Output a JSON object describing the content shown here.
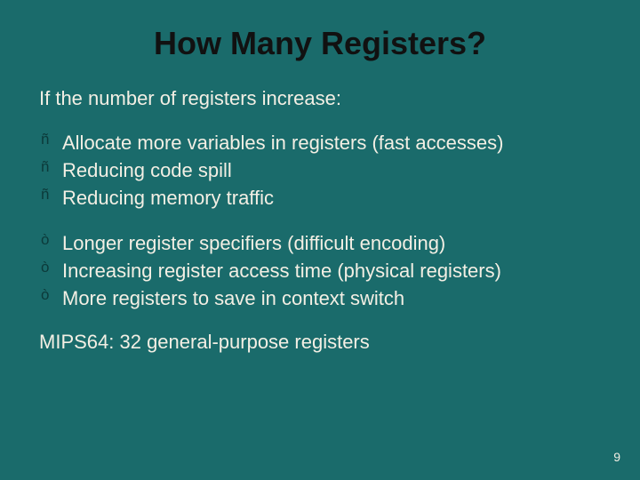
{
  "colors": {
    "background": "#1a6b6b",
    "title": "#111111",
    "bullet": "#0c3a3a",
    "body": "#f3efe4",
    "page_number": "#f3efe4"
  },
  "fontsizes": {
    "title_pt": 36,
    "body_pt": 22,
    "bullet_pt": 17,
    "page_pt": 14
  },
  "title": "How Many Registers?",
  "intro": "If the number of registers increase:",
  "group_up": [
    "Allocate more variables in registers (fast accesses)",
    "Reducing code spill",
    "Reducing memory traffic"
  ],
  "group_down": [
    "Longer register specifiers (difficult encoding)",
    "Increasing register access time (physical registers)",
    "More registers to save in context switch"
  ],
  "footer": "MIPS64: 32 general-purpose registers",
  "page_number": "9",
  "bullets": {
    "up_glyph": "ñ",
    "down_glyph": "ò"
  }
}
